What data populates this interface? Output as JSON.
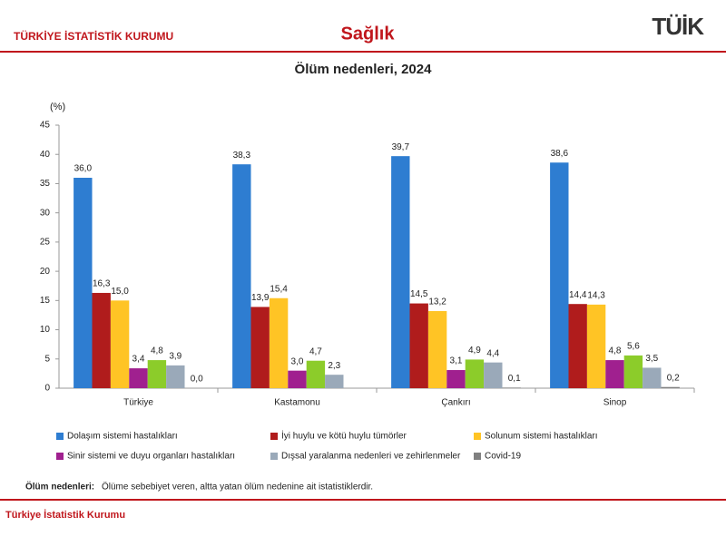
{
  "header": {
    "org": "TÜRKİYE İSTATİSTİK KURUMU",
    "section": "Sağlık",
    "logo": "TÜİK"
  },
  "chart_data": {
    "type": "bar",
    "title": "Ölüm nedenleri, 2024",
    "y_label": "(%)",
    "categories": [
      "Türkiye",
      "Kastamonu",
      "Çankırı",
      "Sinop"
    ],
    "series": [
      {
        "name": "Dolaşım sistemi hastalıkları",
        "color": "#2e7dd1",
        "values": [
          36.0,
          38.3,
          39.7,
          38.6
        ],
        "value_labels": [
          "36,0",
          "38,3",
          "39,7",
          "38,6"
        ]
      },
      {
        "name": "İyi huylu ve kötü huylu tümörler",
        "color": "#b01c1c",
        "values": [
          16.3,
          13.9,
          14.5,
          14.4
        ],
        "value_labels": [
          "16,3",
          "13,9",
          "14,5",
          "14,4"
        ]
      },
      {
        "name": "Solunum sistemi hastalıkları",
        "color": "#ffc425",
        "values": [
          15.0,
          15.4,
          13.2,
          14.3
        ],
        "value_labels": [
          "15,0",
          "15,4",
          "13,2",
          "14,3"
        ]
      },
      {
        "name": "Sinir sistemi ve duyu organları hastalıkları",
        "color": "#a0208f",
        "values": [
          3.4,
          3.0,
          3.1,
          4.8
        ],
        "value_labels": [
          "3,4",
          "3,0",
          "3,1",
          "4,8"
        ]
      },
      {
        "name": null,
        "color": "#8ccc2a",
        "values": [
          4.8,
          4.7,
          4.9,
          5.6
        ],
        "value_labels": [
          "4,8",
          "4,7",
          "4,9",
          "5,6"
        ]
      },
      {
        "name": "Dışsal yaralanma nedenleri ve zehirlenmeler",
        "color": "#9aa9b9",
        "values": [
          3.9,
          2.3,
          4.4,
          3.5
        ],
        "value_labels": [
          "3,9",
          "2,3",
          "4,4",
          "3,5"
        ]
      },
      {
        "name": "Covid-19",
        "color": "#808080",
        "values": [
          0.0,
          null,
          0.1,
          0.2
        ],
        "value_labels": [
          "0,0",
          null,
          "0,1",
          "0,2"
        ]
      }
    ],
    "ylim": [
      0,
      45
    ],
    "yticks": [
      0,
      5,
      10,
      15,
      20,
      25,
      30,
      35,
      40,
      45
    ],
    "grid": false
  },
  "note": {
    "label": "Ölüm nedenleri:",
    "text": " Ölüme sebebiyet veren, altta yatan ölüm nedenine ait istatistiklerdir."
  },
  "footer": "Türkiye İstatistik Kurumu"
}
